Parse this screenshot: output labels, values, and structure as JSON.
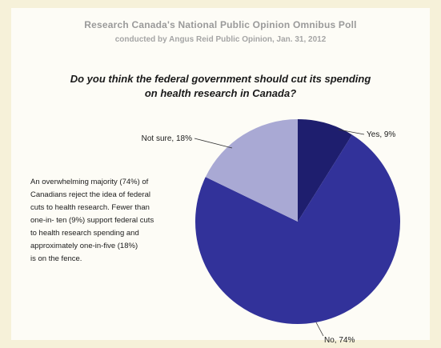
{
  "header": {
    "title": "Research Canada's National Public Opinion Omnibus Poll",
    "subtitle": "conducted by Angus Reid Public Opinion, Jan. 31, 2012"
  },
  "question_lines": [
    "Do you think the federal government should cut its spending",
    "on health research in Canada?"
  ],
  "summary_lines": [
    "An overwhelming majority (74%) of",
    "Canadians reject the idea of federal",
    "cuts to health research. Fewer than",
    "one-in- ten (9%) support federal cuts",
    "to health research spending and",
    "approximately one-in-five (18%)",
    "is on the fence."
  ],
  "chart_data": {
    "type": "pie",
    "title": "Do you think the federal government should cut its spending on health research in Canada?",
    "slices": [
      {
        "label": "Yes, 9%",
        "category": "Yes",
        "value": 9,
        "color": "#1e1e6e"
      },
      {
        "label": "No, 74%",
        "category": "No",
        "value": 74,
        "color": "#32329a"
      },
      {
        "label": "Not sure, 18%",
        "category": "Not sure",
        "value": 18,
        "color": "#a9a9d4"
      }
    ],
    "start": "12 o'clock",
    "direction": "clockwise"
  }
}
